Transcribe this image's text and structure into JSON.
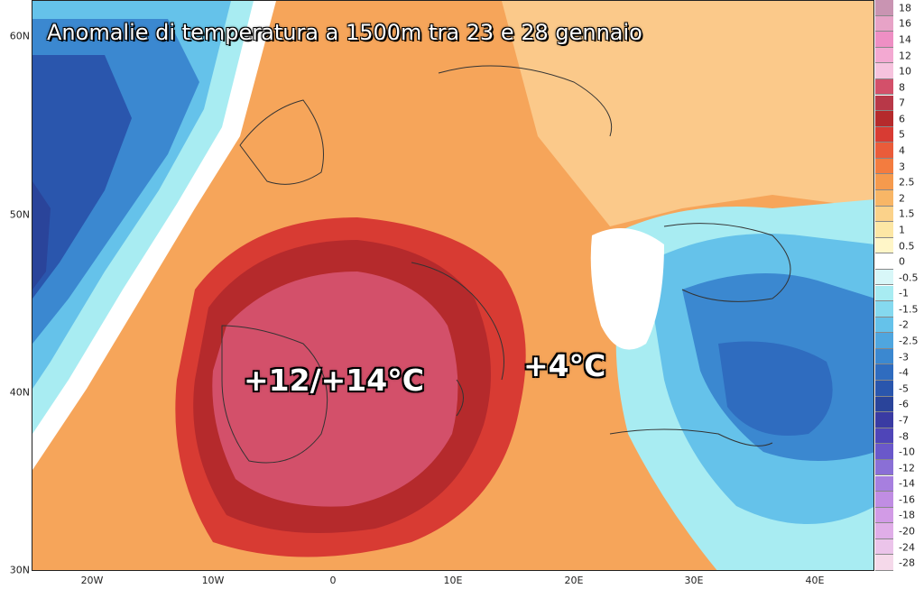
{
  "title": "Anomalie di temperatura a 1500m tra 23 e 28 gennaio",
  "annotations": {
    "west": "+12/+14°C",
    "east": "+4°C"
  },
  "axes": {
    "latitudes": [
      "60N",
      "50N",
      "40N",
      "30N"
    ],
    "longitudes": [
      "20W",
      "10W",
      "0",
      "10E",
      "20E",
      "30E",
      "40E"
    ]
  },
  "legend": {
    "labels": [
      "18",
      "16",
      "14",
      "12",
      "10",
      "8",
      "7",
      "6",
      "5",
      "4",
      "3",
      "2.5",
      "2",
      "1.5",
      "1",
      "0.5",
      "0",
      "-0.5",
      "-1",
      "-1.5",
      "-2",
      "-2.5",
      "-3",
      "-4",
      "-5",
      "-6",
      "-7",
      "-8",
      "-10",
      "-12",
      "-14",
      "-16",
      "-18",
      "-20",
      "-24",
      "-28"
    ],
    "colors": [
      "#c994b2",
      "#e7a3c7",
      "#ee8fc4",
      "#f3a9d2",
      "#f6c3de",
      "#d3506a",
      "#b83848",
      "#b52a2c",
      "#d83b33",
      "#ea5c3a",
      "#f37c3f",
      "#f59a4d",
      "#f8b666",
      "#fbd28a",
      "#fde7a5",
      "#fff6c8",
      "#ffffff",
      "#d8f7f8",
      "#a8ecf2",
      "#85d9ef",
      "#65c2ea",
      "#4fa6df",
      "#3b88d0",
      "#2f6cbf",
      "#2a56ad",
      "#2a449a",
      "#3a3ba3",
      "#4f45b8",
      "#6a58ca",
      "#8a6fd6",
      "#a77fdf",
      "#c08de3",
      "#d29be6",
      "#e0aee8",
      "#ebc4ea",
      "#f5d9ea"
    ]
  }
}
